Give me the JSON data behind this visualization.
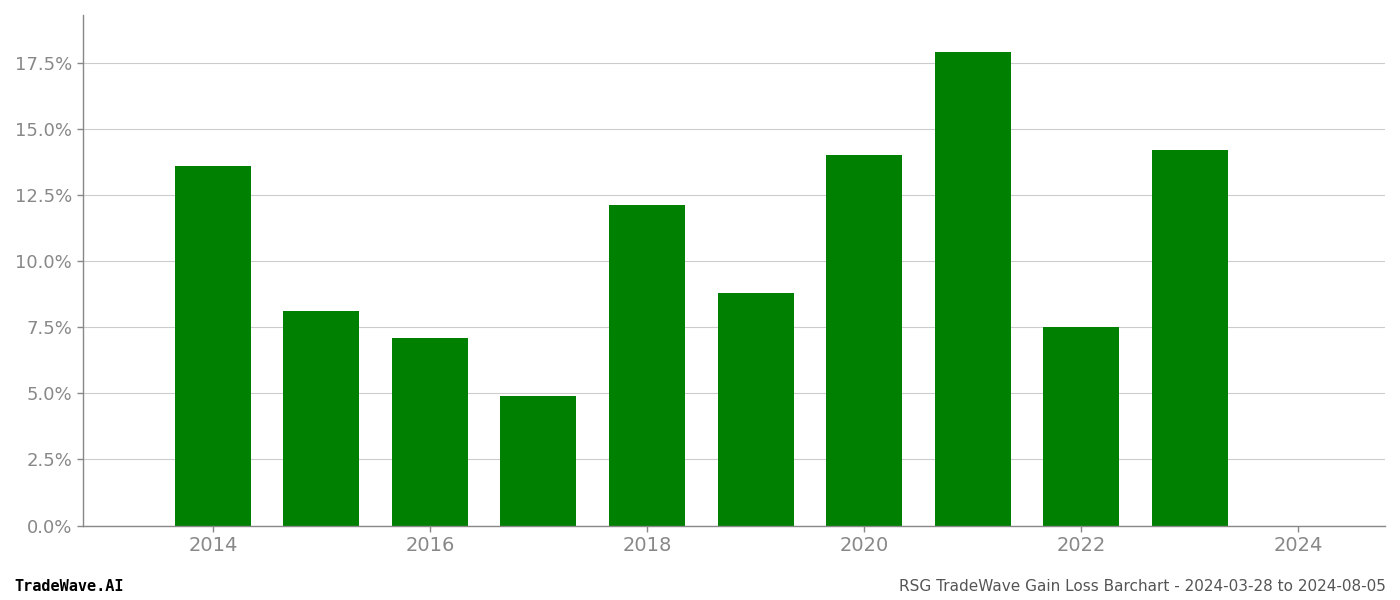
{
  "years": [
    2014,
    2015,
    2016,
    2017,
    2018,
    2019,
    2020,
    2021,
    2022,
    2023
  ],
  "values": [
    0.136,
    0.081,
    0.071,
    0.049,
    0.121,
    0.088,
    0.14,
    0.179,
    0.075,
    0.142
  ],
  "bar_color": "#008000",
  "background_color": "#ffffff",
  "ylim": [
    0,
    0.193
  ],
  "yticks": [
    0.0,
    0.025,
    0.05,
    0.075,
    0.1,
    0.125,
    0.15,
    0.175
  ],
  "ytick_labels": [
    "0.0%",
    "2.5%",
    "5.0%",
    "7.5%",
    "10.0%",
    "12.5%",
    "15.0%",
    "17.5%"
  ],
  "grid_color": "#cccccc",
  "footer_left": "TradeWave.AI",
  "footer_right": "RSG TradeWave Gain Loss Barchart - 2024-03-28 to 2024-08-05",
  "footer_color_left": "#000000",
  "footer_color_right": "#555555",
  "footer_fontsize": 11,
  "spine_color": "#888888",
  "tick_label_color": "#888888",
  "bar_width": 0.7,
  "xlim": [
    2012.8,
    2024.8
  ],
  "xticks": [
    2014,
    2016,
    2018,
    2020,
    2022,
    2024
  ],
  "x_tick_fontsize": 14,
  "y_tick_fontsize": 13
}
